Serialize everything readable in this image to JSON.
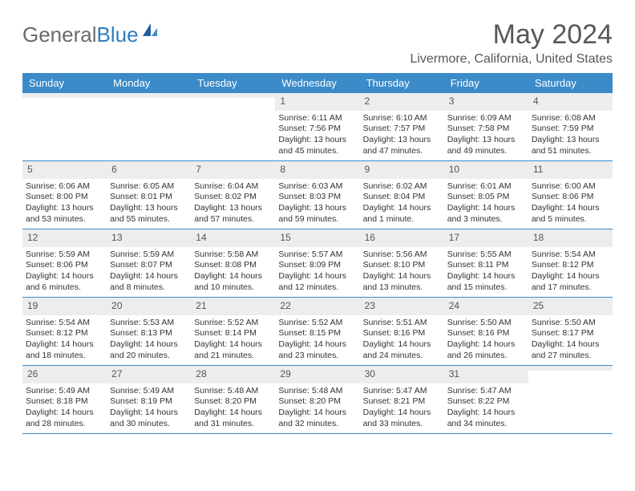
{
  "logo": {
    "part1": "General",
    "part2": "Blue"
  },
  "title": "May 2024",
  "location": "Livermore, California, United States",
  "weekdays": [
    "Sunday",
    "Monday",
    "Tuesday",
    "Wednesday",
    "Thursday",
    "Friday",
    "Saturday"
  ],
  "colors": {
    "header_bg": "#3b8bc9",
    "header_text": "#ffffff",
    "daynum_bg": "#ededed",
    "text": "#333333",
    "logo_gray": "#6b6b6b",
    "logo_blue": "#2e7dc0",
    "border": "#3b8bc9"
  },
  "weeks": [
    [
      {
        "n": "",
        "sunrise": "",
        "sunset": "",
        "daylight": ""
      },
      {
        "n": "",
        "sunrise": "",
        "sunset": "",
        "daylight": ""
      },
      {
        "n": "",
        "sunrise": "",
        "sunset": "",
        "daylight": ""
      },
      {
        "n": "1",
        "sunrise": "Sunrise: 6:11 AM",
        "sunset": "Sunset: 7:56 PM",
        "daylight": "Daylight: 13 hours and 45 minutes."
      },
      {
        "n": "2",
        "sunrise": "Sunrise: 6:10 AM",
        "sunset": "Sunset: 7:57 PM",
        "daylight": "Daylight: 13 hours and 47 minutes."
      },
      {
        "n": "3",
        "sunrise": "Sunrise: 6:09 AM",
        "sunset": "Sunset: 7:58 PM",
        "daylight": "Daylight: 13 hours and 49 minutes."
      },
      {
        "n": "4",
        "sunrise": "Sunrise: 6:08 AM",
        "sunset": "Sunset: 7:59 PM",
        "daylight": "Daylight: 13 hours and 51 minutes."
      }
    ],
    [
      {
        "n": "5",
        "sunrise": "Sunrise: 6:06 AM",
        "sunset": "Sunset: 8:00 PM",
        "daylight": "Daylight: 13 hours and 53 minutes."
      },
      {
        "n": "6",
        "sunrise": "Sunrise: 6:05 AM",
        "sunset": "Sunset: 8:01 PM",
        "daylight": "Daylight: 13 hours and 55 minutes."
      },
      {
        "n": "7",
        "sunrise": "Sunrise: 6:04 AM",
        "sunset": "Sunset: 8:02 PM",
        "daylight": "Daylight: 13 hours and 57 minutes."
      },
      {
        "n": "8",
        "sunrise": "Sunrise: 6:03 AM",
        "sunset": "Sunset: 8:03 PM",
        "daylight": "Daylight: 13 hours and 59 minutes."
      },
      {
        "n": "9",
        "sunrise": "Sunrise: 6:02 AM",
        "sunset": "Sunset: 8:04 PM",
        "daylight": "Daylight: 14 hours and 1 minute."
      },
      {
        "n": "10",
        "sunrise": "Sunrise: 6:01 AM",
        "sunset": "Sunset: 8:05 PM",
        "daylight": "Daylight: 14 hours and 3 minutes."
      },
      {
        "n": "11",
        "sunrise": "Sunrise: 6:00 AM",
        "sunset": "Sunset: 8:06 PM",
        "daylight": "Daylight: 14 hours and 5 minutes."
      }
    ],
    [
      {
        "n": "12",
        "sunrise": "Sunrise: 5:59 AM",
        "sunset": "Sunset: 8:06 PM",
        "daylight": "Daylight: 14 hours and 6 minutes."
      },
      {
        "n": "13",
        "sunrise": "Sunrise: 5:59 AM",
        "sunset": "Sunset: 8:07 PM",
        "daylight": "Daylight: 14 hours and 8 minutes."
      },
      {
        "n": "14",
        "sunrise": "Sunrise: 5:58 AM",
        "sunset": "Sunset: 8:08 PM",
        "daylight": "Daylight: 14 hours and 10 minutes."
      },
      {
        "n": "15",
        "sunrise": "Sunrise: 5:57 AM",
        "sunset": "Sunset: 8:09 PM",
        "daylight": "Daylight: 14 hours and 12 minutes."
      },
      {
        "n": "16",
        "sunrise": "Sunrise: 5:56 AM",
        "sunset": "Sunset: 8:10 PM",
        "daylight": "Daylight: 14 hours and 13 minutes."
      },
      {
        "n": "17",
        "sunrise": "Sunrise: 5:55 AM",
        "sunset": "Sunset: 8:11 PM",
        "daylight": "Daylight: 14 hours and 15 minutes."
      },
      {
        "n": "18",
        "sunrise": "Sunrise: 5:54 AM",
        "sunset": "Sunset: 8:12 PM",
        "daylight": "Daylight: 14 hours and 17 minutes."
      }
    ],
    [
      {
        "n": "19",
        "sunrise": "Sunrise: 5:54 AM",
        "sunset": "Sunset: 8:12 PM",
        "daylight": "Daylight: 14 hours and 18 minutes."
      },
      {
        "n": "20",
        "sunrise": "Sunrise: 5:53 AM",
        "sunset": "Sunset: 8:13 PM",
        "daylight": "Daylight: 14 hours and 20 minutes."
      },
      {
        "n": "21",
        "sunrise": "Sunrise: 5:52 AM",
        "sunset": "Sunset: 8:14 PM",
        "daylight": "Daylight: 14 hours and 21 minutes."
      },
      {
        "n": "22",
        "sunrise": "Sunrise: 5:52 AM",
        "sunset": "Sunset: 8:15 PM",
        "daylight": "Daylight: 14 hours and 23 minutes."
      },
      {
        "n": "23",
        "sunrise": "Sunrise: 5:51 AM",
        "sunset": "Sunset: 8:16 PM",
        "daylight": "Daylight: 14 hours and 24 minutes."
      },
      {
        "n": "24",
        "sunrise": "Sunrise: 5:50 AM",
        "sunset": "Sunset: 8:16 PM",
        "daylight": "Daylight: 14 hours and 26 minutes."
      },
      {
        "n": "25",
        "sunrise": "Sunrise: 5:50 AM",
        "sunset": "Sunset: 8:17 PM",
        "daylight": "Daylight: 14 hours and 27 minutes."
      }
    ],
    [
      {
        "n": "26",
        "sunrise": "Sunrise: 5:49 AM",
        "sunset": "Sunset: 8:18 PM",
        "daylight": "Daylight: 14 hours and 28 minutes."
      },
      {
        "n": "27",
        "sunrise": "Sunrise: 5:49 AM",
        "sunset": "Sunset: 8:19 PM",
        "daylight": "Daylight: 14 hours and 30 minutes."
      },
      {
        "n": "28",
        "sunrise": "Sunrise: 5:48 AM",
        "sunset": "Sunset: 8:20 PM",
        "daylight": "Daylight: 14 hours and 31 minutes."
      },
      {
        "n": "29",
        "sunrise": "Sunrise: 5:48 AM",
        "sunset": "Sunset: 8:20 PM",
        "daylight": "Daylight: 14 hours and 32 minutes."
      },
      {
        "n": "30",
        "sunrise": "Sunrise: 5:47 AM",
        "sunset": "Sunset: 8:21 PM",
        "daylight": "Daylight: 14 hours and 33 minutes."
      },
      {
        "n": "31",
        "sunrise": "Sunrise: 5:47 AM",
        "sunset": "Sunset: 8:22 PM",
        "daylight": "Daylight: 14 hours and 34 minutes."
      },
      {
        "n": "",
        "sunrise": "",
        "sunset": "",
        "daylight": ""
      }
    ]
  ]
}
